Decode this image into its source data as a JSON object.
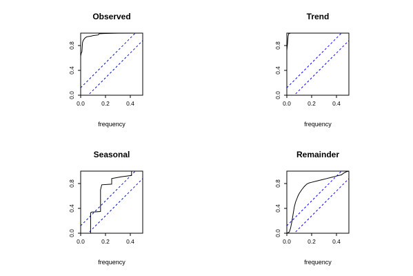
{
  "colors": {
    "curve": "#000000",
    "bands": "#0000ff",
    "frame": "#000000",
    "background": "#ffffff"
  },
  "chart_data": [
    {
      "type": "line",
      "title": "Observed",
      "xlabel": "frequency",
      "ylabel": "",
      "xlim": [
        0,
        0.5
      ],
      "ylim": [
        0,
        1
      ],
      "xticks": [
        "0.0",
        "0.2",
        "0.4"
      ],
      "yticks": [
        "0.0",
        "0.4",
        "0.8"
      ],
      "bands": {
        "offset": 0.12,
        "style": "dashed"
      },
      "series": [
        {
          "points": [
            [
              0,
              0
            ],
            [
              0.0,
              0.63
            ],
            [
              0.005,
              0.68
            ],
            [
              0.01,
              0.7
            ],
            [
              0.015,
              0.85
            ],
            [
              0.02,
              0.88
            ],
            [
              0.03,
              0.91
            ],
            [
              0.04,
              0.93
            ],
            [
              0.05,
              0.94
            ],
            [
              0.06,
              0.945
            ],
            [
              0.08,
              0.95
            ],
            [
              0.1,
              0.96
            ],
            [
              0.14,
              0.97
            ],
            [
              0.15,
              0.99
            ],
            [
              0.2,
              0.995
            ],
            [
              0.3,
              0.998
            ],
            [
              0.5,
              1.0
            ]
          ]
        }
      ]
    },
    {
      "type": "line",
      "title": "Trend",
      "xlabel": "frequency",
      "ylabel": "",
      "xlim": [
        0,
        0.5
      ],
      "ylim": [
        0,
        1
      ],
      "xticks": [
        "0.0",
        "0.2",
        "0.4"
      ],
      "yticks": [
        "0.0",
        "0.4",
        "0.8"
      ],
      "bands": {
        "offset": 0.12,
        "style": "dashed"
      },
      "series": [
        {
          "points": [
            [
              0,
              0
            ],
            [
              0.0,
              0.72
            ],
            [
              0.005,
              0.82
            ],
            [
              0.01,
              0.95
            ],
            [
              0.015,
              0.99
            ],
            [
              0.03,
              1.0
            ],
            [
              0.5,
              1.0
            ]
          ]
        }
      ]
    },
    {
      "type": "line",
      "title": "Seasonal",
      "xlabel": "frequency",
      "ylabel": "",
      "xlim": [
        0,
        0.5
      ],
      "ylim": [
        0,
        1
      ],
      "xticks": [
        "0.0",
        "0.2",
        "0.4"
      ],
      "yticks": [
        "0.0",
        "0.4",
        "0.8"
      ],
      "bands": {
        "offset": 0.12,
        "style": "dashed"
      },
      "series": [
        {
          "points": [
            [
              0,
              0
            ],
            [
              0.08,
              0.0
            ],
            [
              0.08,
              0.33
            ],
            [
              0.09,
              0.34
            ],
            [
              0.16,
              0.35
            ],
            [
              0.16,
              0.7
            ],
            [
              0.17,
              0.78
            ],
            [
              0.25,
              0.79
            ],
            [
              0.25,
              0.88
            ],
            [
              0.33,
              0.91
            ],
            [
              0.41,
              0.93
            ],
            [
              0.41,
              1.0
            ],
            [
              0.5,
              1.0
            ]
          ]
        }
      ]
    },
    {
      "type": "line",
      "title": "Remainder",
      "xlabel": "frequency",
      "ylabel": "",
      "xlim": [
        0,
        0.5
      ],
      "ylim": [
        0,
        1
      ],
      "xticks": [
        "0.0",
        "0.2",
        "0.4"
      ],
      "yticks": [
        "0.0",
        "0.4",
        "0.8"
      ],
      "bands": {
        "offset": 0.12,
        "style": "dashed"
      },
      "series": [
        {
          "points": [
            [
              0,
              0
            ],
            [
              0.02,
              0.02
            ],
            [
              0.03,
              0.08
            ],
            [
              0.04,
              0.18
            ],
            [
              0.05,
              0.3
            ],
            [
              0.06,
              0.42
            ],
            [
              0.07,
              0.5
            ],
            [
              0.08,
              0.55
            ],
            [
              0.09,
              0.6
            ],
            [
              0.1,
              0.64
            ],
            [
              0.12,
              0.7
            ],
            [
              0.14,
              0.75
            ],
            [
              0.16,
              0.79
            ],
            [
              0.18,
              0.81
            ],
            [
              0.2,
              0.82
            ],
            [
              0.24,
              0.84
            ],
            [
              0.28,
              0.86
            ],
            [
              0.32,
              0.88
            ],
            [
              0.36,
              0.9
            ],
            [
              0.4,
              0.92
            ],
            [
              0.44,
              0.94
            ],
            [
              0.46,
              0.97
            ],
            [
              0.48,
              0.99
            ],
            [
              0.5,
              1.0
            ]
          ]
        }
      ]
    }
  ]
}
